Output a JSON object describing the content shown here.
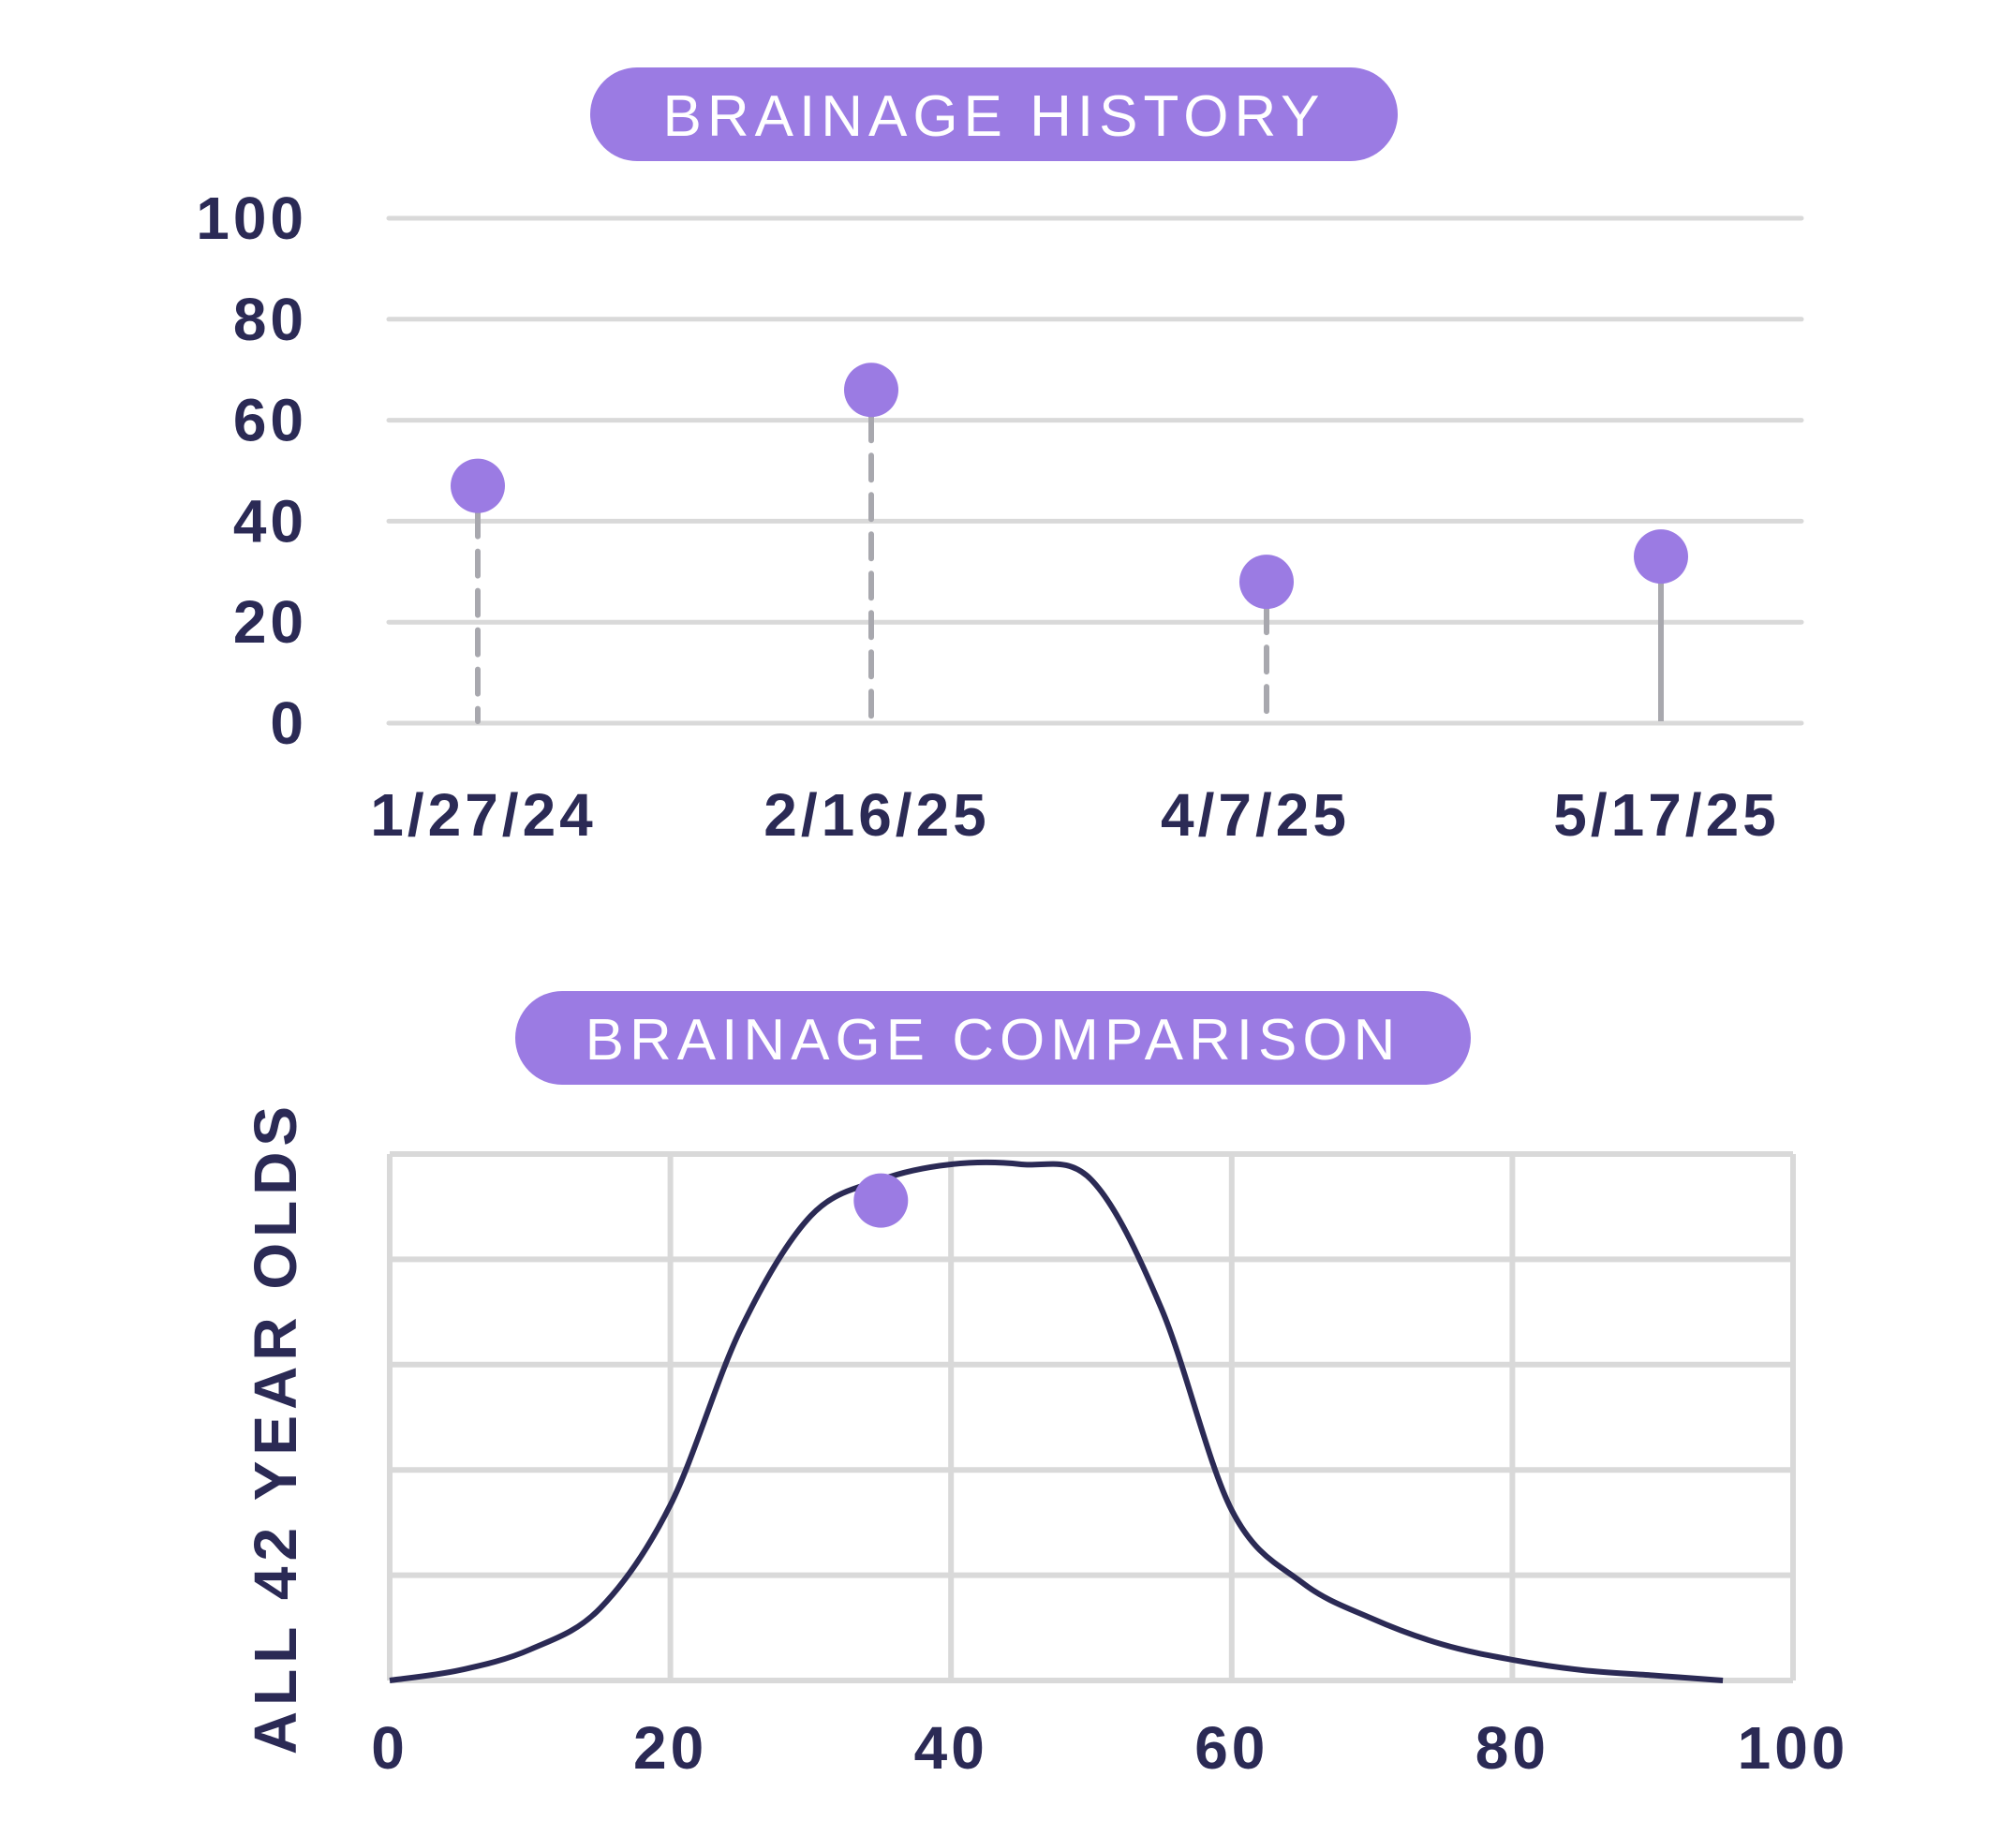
{
  "colors": {
    "accent": "#9b7be3",
    "text": "#2b2a55",
    "grid": "#d9d9d9",
    "stem": "#a8a8ae",
    "curve": "#2b2a55"
  },
  "chart_data": [
    {
      "type": "scatter",
      "title": "BRAINAGE HISTORY",
      "categories": [
        "1/27/24",
        "2/16/25",
        "4/7/25",
        "5/17/25"
      ],
      "values": [
        47,
        66,
        28,
        33
      ],
      "stem_style": [
        "dashed",
        "dashed",
        "dashed",
        "solid"
      ],
      "yticks": [
        "100",
        "80",
        "60",
        "40",
        "20",
        "0"
      ],
      "ylim": [
        0,
        100
      ],
      "grid": true
    },
    {
      "type": "line",
      "title": "BRAINAGE COMPARISON",
      "ylabel": "ALL 42 YEAR OLDS",
      "xticks": [
        "0",
        "20",
        "40",
        "60",
        "80",
        "100"
      ],
      "xlim": [
        0,
        100
      ],
      "grid": true,
      "series": [
        {
          "x": [
            0,
            5,
            10,
            15,
            20,
            25,
            30,
            35,
            40,
            45,
            50,
            55,
            60,
            65,
            70,
            75,
            80,
            85,
            90,
            95
          ],
          "values": [
            0,
            0.02,
            0.06,
            0.14,
            0.34,
            0.68,
            0.9,
            0.97,
            1.0,
            1.0,
            0.97,
            0.72,
            0.33,
            0.19,
            0.12,
            0.07,
            0.04,
            0.02,
            0.01,
            0
          ]
        }
      ],
      "marker": {
        "x": 35,
        "y": 0.93
      }
    }
  ]
}
